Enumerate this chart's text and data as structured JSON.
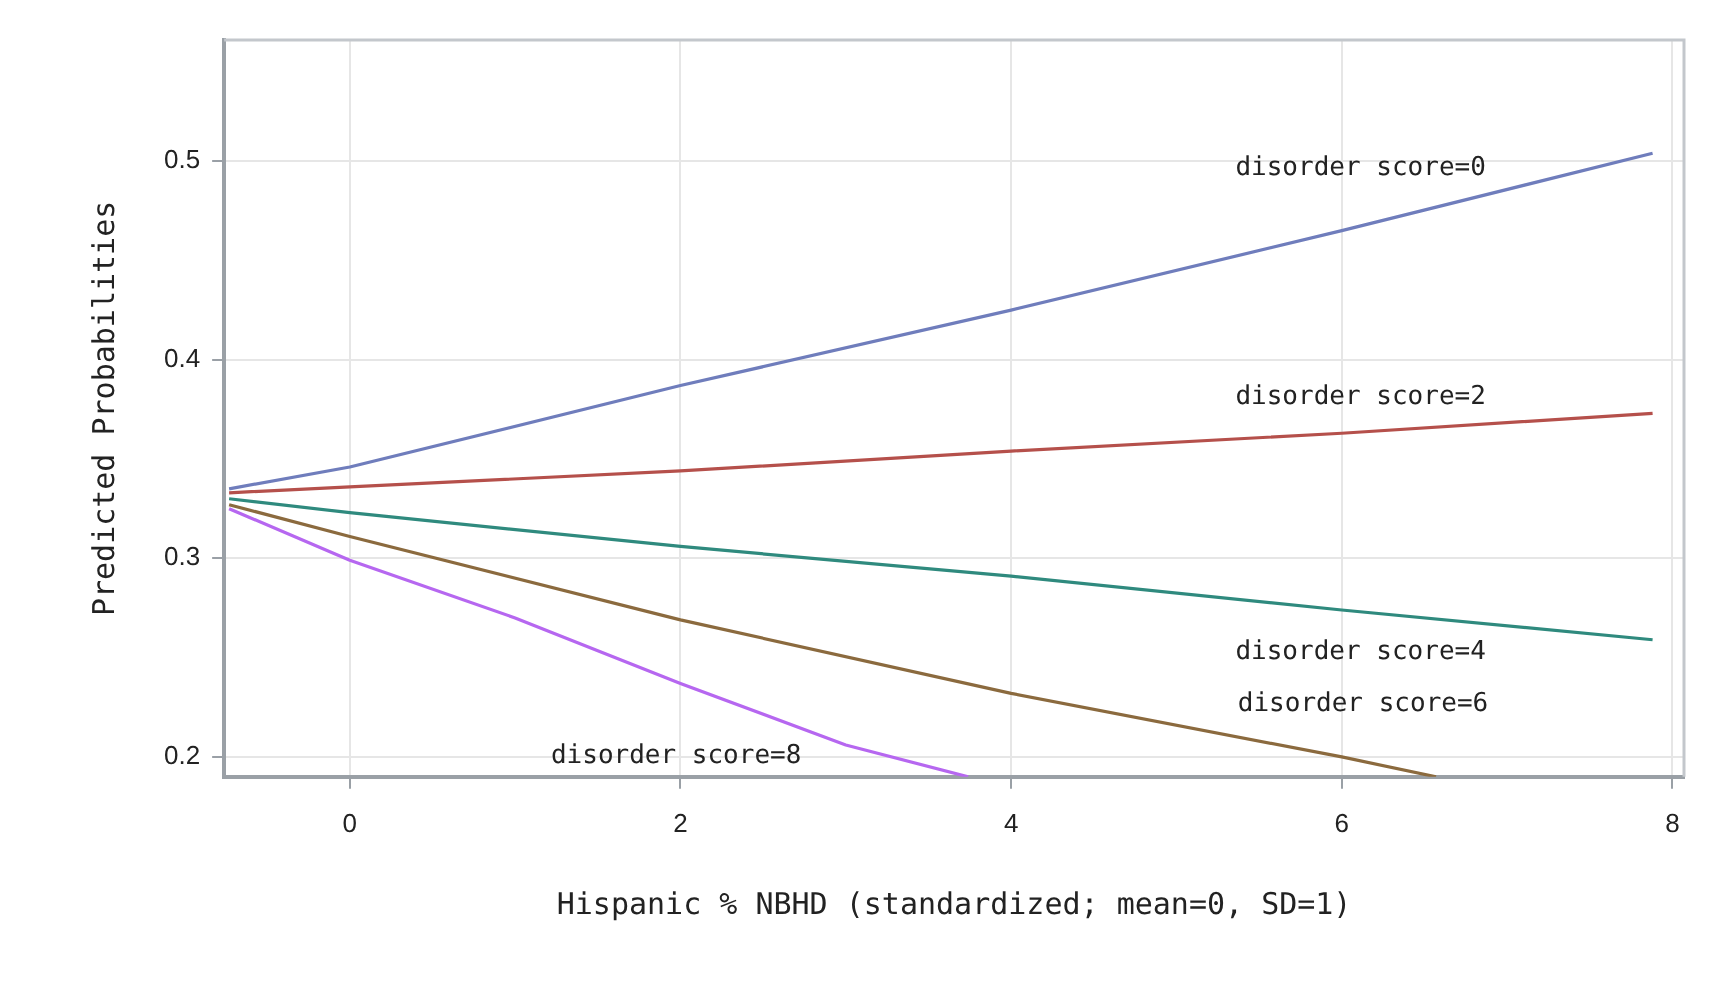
{
  "chart_data": {
    "type": "line",
    "xlabel": "Hispanic % NBHD (standardized; mean=0, SD=1)",
    "ylabel": "Predicted Probabilities",
    "xlim": [
      -0.76,
      8.07
    ],
    "ylim": [
      0.19,
      0.561
    ],
    "xticks": [
      0,
      2,
      4,
      6,
      8
    ],
    "yticks": [
      0.2,
      0.3,
      0.4,
      0.5
    ],
    "grid": true,
    "legend": false,
    "marker": "none",
    "line_style": "solid",
    "series": [
      {
        "name": "disorder score=0",
        "color": "#6f7dbc",
        "x": [
          -0.73,
          0,
          2,
          4,
          6,
          7.88
        ],
        "values": [
          0.335,
          0.346,
          0.387,
          0.425,
          0.465,
          0.504
        ]
      },
      {
        "name": "disorder score=2",
        "color": "#b5504b",
        "x": [
          -0.73,
          0,
          2,
          4,
          6,
          7.88
        ],
        "values": [
          0.333,
          0.336,
          0.344,
          0.354,
          0.363,
          0.373
        ]
      },
      {
        "name": "disorder score=4",
        "color": "#2f8a7e",
        "x": [
          -0.73,
          0,
          2,
          4,
          6,
          7.88
        ],
        "values": [
          0.33,
          0.323,
          0.306,
          0.291,
          0.274,
          0.259
        ]
      },
      {
        "name": "disorder score=6",
        "color": "#8b6a3e",
        "x": [
          -0.73,
          0,
          2,
          4,
          6,
          6.57
        ],
        "values": [
          0.327,
          0.311,
          0.269,
          0.232,
          0.2,
          0.19
        ]
      },
      {
        "name": "disorder score=8",
        "color": "#b667f0",
        "x": [
          -0.73,
          0,
          1,
          2,
          3,
          3.74
        ],
        "values": [
          0.325,
          0.299,
          0.27,
          0.237,
          0.206,
          0.19
        ]
      }
    ]
  }
}
